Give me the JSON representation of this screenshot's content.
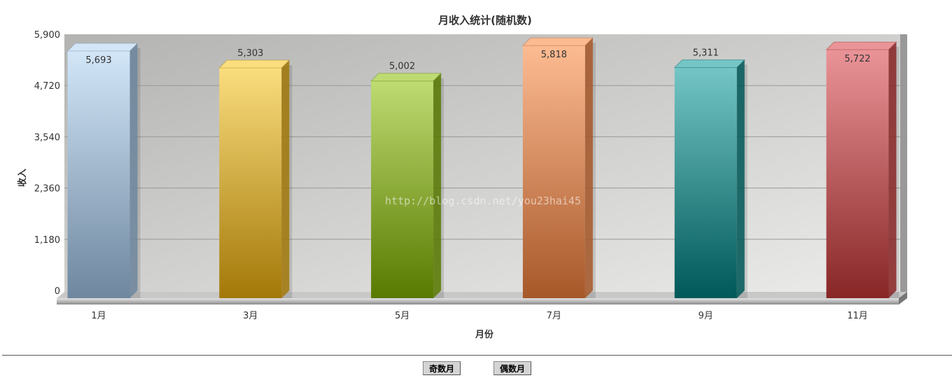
{
  "chart_data": {
    "type": "bar",
    "title": "月收入统计(随机数)",
    "xlabel": "月份",
    "ylabel": "收入",
    "categories": [
      "1月",
      "3月",
      "5月",
      "7月",
      "9月",
      "11月"
    ],
    "values": [
      5693,
      5303,
      5002,
      5818,
      5311,
      5722
    ],
    "data_labels": [
      "5,693",
      "5,303",
      "5,002",
      "5,818",
      "5,311",
      "5,722"
    ],
    "ylim": [
      0,
      5900
    ],
    "yticks": [
      "0",
      "1,180",
      "2,360",
      "3,540",
      "4,720",
      "5,900"
    ],
    "ytick_values": [
      0,
      1180,
      2360,
      3540,
      4720,
      5900
    ],
    "grid": true,
    "style": "3d",
    "colors": [
      [
        "#d2e6f8",
        "#6e879f"
      ],
      [
        "#fadd7e",
        "#a37808"
      ],
      [
        "#bedb72",
        "#587a00"
      ],
      [
        "#fdbb92",
        "#a75829"
      ],
      [
        "#74c6c6",
        "#005858"
      ],
      [
        "#ea9498",
        "#882626"
      ]
    ]
  },
  "watermark": "http://blog.csdn.net/you23hai45",
  "buttons": {
    "odd": "奇数月",
    "even": "偶数月"
  }
}
